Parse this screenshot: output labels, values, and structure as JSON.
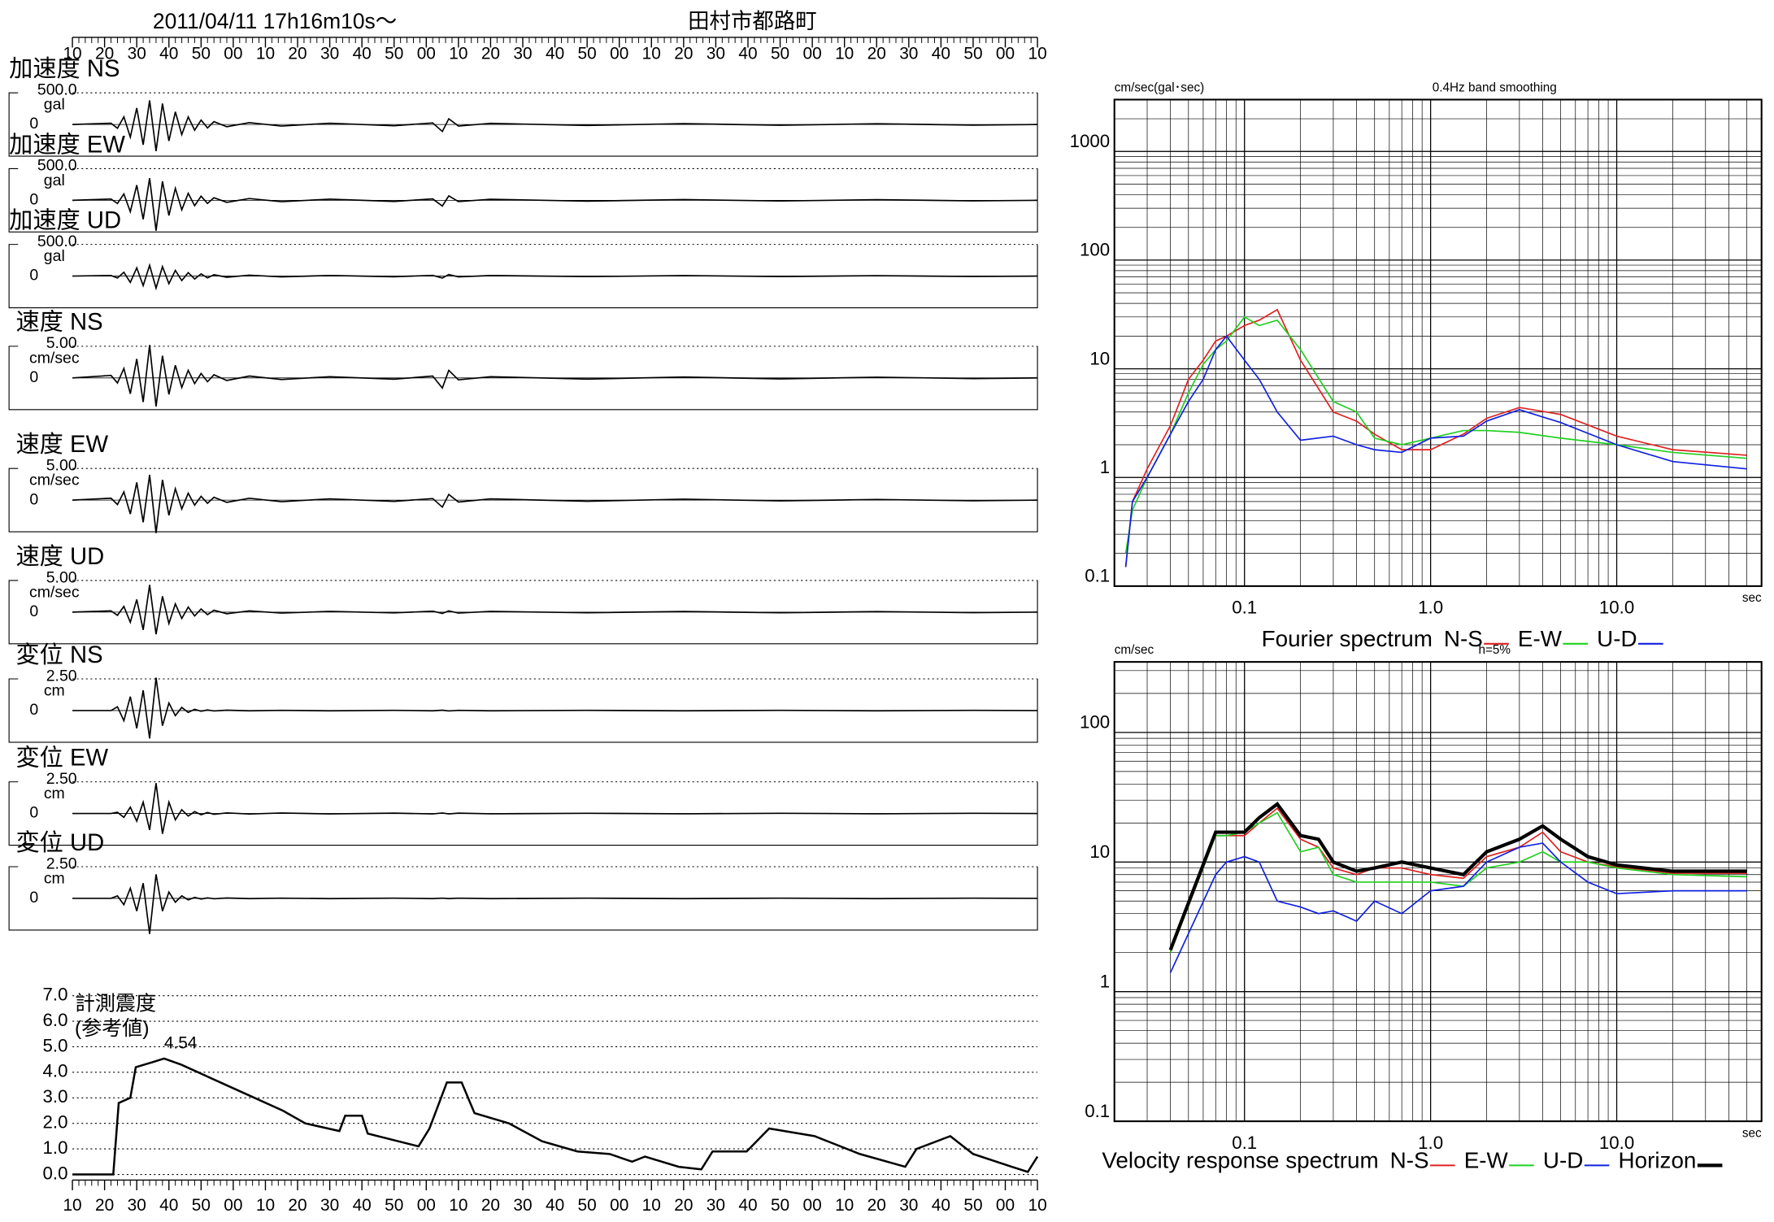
{
  "header": {
    "date": "2011/04/11  17h16m10s〜",
    "station": "田村市都路町"
  },
  "chart_data": [
    {
      "type": "seismogram",
      "xlim": [
        0,
        300
      ],
      "xticks": [
        {
          "value": 0,
          "label": "10"
        },
        {
          "value": 10,
          "label": "20"
        },
        {
          "value": 20,
          "label": "30"
        },
        {
          "value": 30,
          "label": "40"
        },
        {
          "value": 40,
          "label": "50"
        },
        {
          "value": 50,
          "label": "00"
        },
        {
          "value": 60,
          "label": "10"
        },
        {
          "value": 70,
          "label": "20"
        },
        {
          "value": 80,
          "label": "30"
        },
        {
          "value": 90,
          "label": "40"
        },
        {
          "value": 100,
          "label": "50"
        },
        {
          "value": 110,
          "label": "00"
        },
        {
          "value": 120,
          "label": "10"
        },
        {
          "value": 130,
          "label": "20"
        },
        {
          "value": 140,
          "label": "30"
        },
        {
          "value": 150,
          "label": "40"
        },
        {
          "value": 160,
          "label": "50"
        },
        {
          "value": 170,
          "label": "00"
        },
        {
          "value": 180,
          "label": "10"
        },
        {
          "value": 190,
          "label": "20"
        },
        {
          "value": 200,
          "label": "30"
        },
        {
          "value": 210,
          "label": "40"
        },
        {
          "value": 220,
          "label": "50"
        },
        {
          "value": 230,
          "label": "00"
        },
        {
          "value": 240,
          "label": "10"
        },
        {
          "value": 250,
          "label": "20"
        },
        {
          "value": 260,
          "label": "30"
        },
        {
          "value": 270,
          "label": "40"
        },
        {
          "value": 280,
          "label": "50"
        },
        {
          "value": 290,
          "label": "00"
        },
        {
          "value": 300,
          "label": "10"
        }
      ],
      "x": [
        0,
        12,
        14,
        16,
        18,
        20,
        22,
        24,
        26,
        28,
        30,
        32,
        34,
        36,
        38,
        40,
        42,
        44,
        48,
        55,
        65,
        80,
        100,
        112,
        115,
        117,
        120,
        130,
        160,
        190,
        220,
        250,
        280,
        300
      ],
      "panels": [
        {
          "name": "加速度 NS",
          "unit": "gal",
          "ylim": [
            -500,
            500
          ],
          "yticks": [
            {
              "value": 500,
              "label": "500.0"
            },
            0
          ],
          "values": [
            0,
            20,
            -60,
            120,
            -200,
            260,
            -320,
            380,
            -420,
            330,
            -260,
            200,
            -160,
            120,
            -90,
            70,
            -55,
            45,
            -35,
            30,
            -25,
            20,
            -20,
            25,
            -110,
            90,
            -25,
            18,
            -15,
            14,
            -12,
            12,
            -10,
            0
          ]
        },
        {
          "name": "加速度 EW",
          "unit": "gal",
          "ylim": [
            -500,
            500
          ],
          "yticks": [
            {
              "value": 500,
              "label": "500.0"
            },
            0
          ],
          "values": [
            0,
            20,
            -50,
            100,
            -180,
            240,
            -300,
            350,
            -480,
            300,
            -240,
            190,
            -150,
            110,
            -85,
            65,
            -50,
            40,
            -32,
            28,
            -22,
            18,
            -18,
            22,
            -90,
            70,
            -20,
            16,
            -14,
            12,
            -11,
            10,
            -9,
            0
          ]
        },
        {
          "name": "加速度 UD",
          "unit": "gal",
          "ylim": [
            -500,
            500
          ],
          "yticks": [
            {
              "value": 500,
              "label": "500.0"
            },
            0
          ],
          "values": [
            0,
            10,
            -30,
            60,
            -100,
            130,
            -150,
            170,
            -190,
            150,
            -120,
            90,
            -70,
            55,
            -45,
            35,
            -28,
            22,
            -18,
            15,
            -12,
            10,
            -10,
            12,
            -30,
            25,
            -12,
            9,
            -8,
            8,
            -7,
            7,
            -6,
            0
          ]
        },
        {
          "name": "速度 NS",
          "unit": "cm/sec",
          "ylim": [
            -5,
            5
          ],
          "yticks": [
            {
              "value": 5,
              "label": "5.00"
            },
            0
          ],
          "values": [
            0,
            0.4,
            -0.8,
            1.5,
            -2.5,
            3,
            -3.8,
            5.2,
            -4.5,
            3.5,
            -2.6,
            2,
            -1.5,
            1.2,
            -0.9,
            0.7,
            -0.6,
            0.5,
            -0.4,
            0.3,
            -0.25,
            0.2,
            -0.2,
            0.3,
            -1.6,
            1.2,
            -0.3,
            0.2,
            -0.18,
            0.15,
            -0.15,
            0.12,
            -0.1,
            0
          ]
        },
        {
          "name": "速度 EW",
          "unit": "cm/sec",
          "ylim": [
            -5,
            5
          ],
          "yticks": [
            {
              "value": 5,
              "label": "5.00"
            },
            0
          ],
          "values": [
            0,
            0.3,
            -0.7,
            1.3,
            -2.2,
            2.8,
            -3.5,
            4,
            -5.2,
            3.2,
            -2.4,
            1.8,
            -1.4,
            1.1,
            -0.8,
            0.6,
            -0.5,
            0.45,
            -0.35,
            0.3,
            -0.25,
            0.2,
            -0.2,
            0.25,
            -1.1,
            0.9,
            -0.3,
            0.2,
            -0.18,
            0.15,
            -0.12,
            0.1,
            -0.1,
            0
          ]
        },
        {
          "name": "速度 UD",
          "unit": "cm/sec",
          "ylim": [
            -5,
            5
          ],
          "yticks": [
            {
              "value": 5,
              "label": "5.00"
            },
            0
          ],
          "values": [
            0,
            0.2,
            -0.5,
            0.9,
            -1.6,
            2,
            -2.8,
            4.3,
            -3.5,
            2.5,
            -1.8,
            1.3,
            -1,
            0.8,
            -0.6,
            0.5,
            -0.4,
            0.3,
            -0.25,
            0.2,
            -0.15,
            0.12,
            -0.12,
            0.15,
            -0.2,
            0.2,
            -0.15,
            0.12,
            -0.1,
            0.1,
            -0.1,
            0.08,
            -0.08,
            0
          ]
        },
        {
          "name": "変位 NS",
          "unit": "cm",
          "ylim": [
            -2.5,
            2.5
          ],
          "yticks": [
            {
              "value": 2.5,
              "label": "2.50"
            },
            0
          ],
          "values": [
            0,
            0,
            0.3,
            -0.8,
            1.1,
            -1.4,
            1.6,
            -2.2,
            2.6,
            -1.2,
            0.6,
            -0.4,
            0.25,
            -0.15,
            0.1,
            -0.05,
            0.05,
            -0.03,
            0.03,
            -0.02,
            0.02,
            -0.02,
            0.02,
            -0.02,
            0.03,
            -0.03,
            0.02,
            -0.02,
            0.02,
            -0.02,
            0.02,
            -0.02,
            0.02,
            0
          ]
        },
        {
          "name": "変位 EW",
          "unit": "cm",
          "ylim": [
            -2.5,
            2.5
          ],
          "yticks": [
            {
              "value": 2.5,
              "label": "2.50"
            },
            0
          ],
          "values": [
            0,
            0,
            0.1,
            -0.3,
            0.5,
            -0.6,
            0.9,
            -1.3,
            2.4,
            -1.6,
            0.9,
            -0.5,
            0.3,
            -0.2,
            0.15,
            -0.1,
            0.08,
            -0.06,
            0.05,
            -0.04,
            0.04,
            -0.03,
            0.03,
            -0.03,
            0.04,
            -0.03,
            0.03,
            -0.02,
            0.02,
            -0.02,
            0.02,
            -0.02,
            0.02,
            0
          ]
        },
        {
          "name": "変位 UD",
          "unit": "cm",
          "ylim": [
            -2.5,
            2.5
          ],
          "yticks": [
            {
              "value": 2.5,
              "label": "2.50"
            },
            0
          ],
          "values": [
            0,
            0,
            0.2,
            -0.5,
            0.8,
            -1,
            1.2,
            -2.8,
            1.9,
            -1,
            0.5,
            -0.3,
            0.2,
            -0.12,
            0.08,
            -0.05,
            0.04,
            -0.03,
            0.03,
            -0.02,
            0.02,
            -0.02,
            0.02,
            -0.02,
            0.02,
            -0.02,
            0.02,
            -0.02,
            0.02,
            -0.02,
            0.02,
            -0.02,
            0.02,
            0
          ]
        }
      ]
    },
    {
      "type": "line",
      "title": "計測震度",
      "subtitle": "(参考値)",
      "xlim": [
        0,
        300
      ],
      "ylim": [
        0,
        7
      ],
      "yticks": [
        {
          "value": 0,
          "label": "0.0"
        },
        {
          "value": 1,
          "label": "1.0"
        },
        {
          "value": 2,
          "label": "2.0"
        },
        {
          "value": 3,
          "label": "3.0"
        },
        {
          "value": 4,
          "label": "4.0"
        },
        {
          "value": 5,
          "label": "5.0"
        },
        {
          "value": 6,
          "label": "6.0"
        },
        {
          "value": 7,
          "label": "7.0"
        }
      ],
      "grid": true,
      "x": [
        0,
        12.7,
        14.4,
        18,
        19.7,
        25,
        28.5,
        33.8,
        47.8,
        65.4,
        72.4,
        83,
        84.8,
        90,
        91.8,
        107.6,
        111,
        116.4,
        121,
        125,
        135.7,
        146,
        157,
        167,
        174,
        178,
        188.5,
        195.5,
        199,
        209.6,
        216.6,
        230.7,
        244.8,
        258.9,
        262.4,
        272.9,
        280,
        292,
        297,
        300
      ],
      "values": [
        0,
        0,
        2.8,
        3.0,
        4.2,
        4.4,
        4.54,
        4.3,
        3.5,
        2.5,
        2.0,
        1.7,
        2.3,
        2.3,
        1.6,
        1.1,
        1.8,
        3.6,
        3.6,
        2.4,
        2.0,
        1.3,
        0.9,
        0.8,
        0.5,
        0.7,
        0.3,
        0.2,
        0.9,
        0.9,
        1.8,
        1.5,
        0.8,
        0.3,
        1.0,
        1.5,
        0.8,
        0.3,
        0.1,
        0.7
      ],
      "color": "#000000",
      "annotation": {
        "value": 4.54,
        "x": 28.5
      }
    },
    {
      "type": "loglog",
      "title": "0.4Hz band smoothing",
      "ylabel": "cm/sec(gal･sec)",
      "xlabel": "sec",
      "legend_title": "Fourier spectrum",
      "xscale": "log",
      "yscale": "log",
      "grid": true,
      "minor_grid": true,
      "xlim": [
        0.02,
        60
      ],
      "ylim": [
        0.1,
        3000
      ],
      "xticks": [
        {
          "value": 0.1,
          "label": "0.1"
        },
        {
          "value": 1,
          "label": "1.0"
        },
        {
          "value": 10,
          "label": "10.0"
        }
      ],
      "yticks": [
        {
          "value": 0.1,
          "label": "0.1"
        },
        1,
        10,
        100,
        1000
      ],
      "x": [
        0.023,
        0.025,
        0.03,
        0.04,
        0.05,
        0.06,
        0.07,
        0.08,
        0.1,
        0.12,
        0.15,
        0.2,
        0.3,
        0.4,
        0.5,
        0.7,
        1,
        1.5,
        2,
        3,
        5,
        10,
        20,
        50
      ],
      "series": [
        {
          "name": "N-S",
          "color": "#e02020",
          "values": [
            0.15,
            0.6,
            1.2,
            3,
            8,
            12,
            18,
            20,
            25,
            28,
            35,
            12,
            4,
            3.3,
            2.5,
            1.8,
            1.8,
            2.5,
            3.5,
            4.4,
            3.8,
            2.4,
            1.8,
            1.6
          ]
        },
        {
          "name": "E-W",
          "color": "#20d020",
          "values": [
            0.2,
            0.5,
            1.0,
            2.5,
            6,
            11,
            15,
            18,
            30,
            25,
            28,
            15,
            5,
            4,
            2.3,
            2,
            2.3,
            2.7,
            2.7,
            2.6,
            2.3,
            2,
            1.7,
            1.5
          ]
        },
        {
          "name": "U-D",
          "color": "#1020e0",
          "values": [
            0.15,
            0.6,
            1,
            2.5,
            5,
            8,
            15,
            20,
            12,
            8,
            4,
            2.2,
            2.4,
            2,
            1.8,
            1.7,
            2.3,
            2.4,
            3.3,
            4.2,
            3.2,
            2,
            1.4,
            1.2
          ]
        }
      ]
    },
    {
      "type": "loglog",
      "title": "h=5%",
      "ylabel": "cm/sec",
      "xlabel": "sec",
      "legend_title": "Velocity response spectrum",
      "xscale": "log",
      "yscale": "log",
      "grid": true,
      "minor_grid": true,
      "xlim": [
        0.02,
        60
      ],
      "ylim": [
        0.1,
        350
      ],
      "xticks": [
        {
          "value": 0.1,
          "label": "0.1"
        },
        {
          "value": 1,
          "label": "1.0"
        },
        {
          "value": 10,
          "label": "10.0"
        }
      ],
      "yticks": [
        {
          "value": 0.1,
          "label": "0.1"
        },
        1,
        10,
        100
      ],
      "x": [
        0.04,
        0.07,
        0.08,
        0.1,
        0.12,
        0.15,
        0.2,
        0.25,
        0.3,
        0.4,
        0.5,
        0.7,
        1,
        1.5,
        2,
        3,
        4,
        5,
        7,
        10,
        20,
        50
      ],
      "series": [
        {
          "name": "N-S",
          "color": "#e02020",
          "values": [
            2,
            16,
            16,
            16,
            20,
            26,
            15,
            13,
            9,
            8,
            9,
            9,
            8,
            7.5,
            11,
            13,
            17,
            12,
            10,
            9.2,
            8.2,
            8.2
          ]
        },
        {
          "name": "E-W",
          "color": "#20d020",
          "values": [
            2,
            16,
            16,
            17,
            20,
            24,
            12,
            13,
            8,
            7,
            7,
            7,
            7,
            6.5,
            9,
            10,
            12,
            10,
            10,
            9,
            8,
            7.7
          ]
        },
        {
          "name": "U-D",
          "color": "#1020e0",
          "values": [
            1.4,
            8,
            10,
            11,
            10,
            5,
            4.5,
            4,
            4.2,
            3.5,
            5,
            4,
            6,
            6.5,
            10,
            13,
            14,
            10,
            7,
            5.7,
            6,
            6
          ]
        },
        {
          "name": "Horizon",
          "color": "#000000",
          "line_width": 3,
          "values": [
            2.1,
            17,
            17,
            17,
            22,
            28,
            16,
            15,
            10,
            8.5,
            9,
            10,
            9,
            8,
            12,
            15,
            19,
            15,
            11,
            9.5,
            8.5,
            8.5
          ]
        }
      ]
    }
  ]
}
